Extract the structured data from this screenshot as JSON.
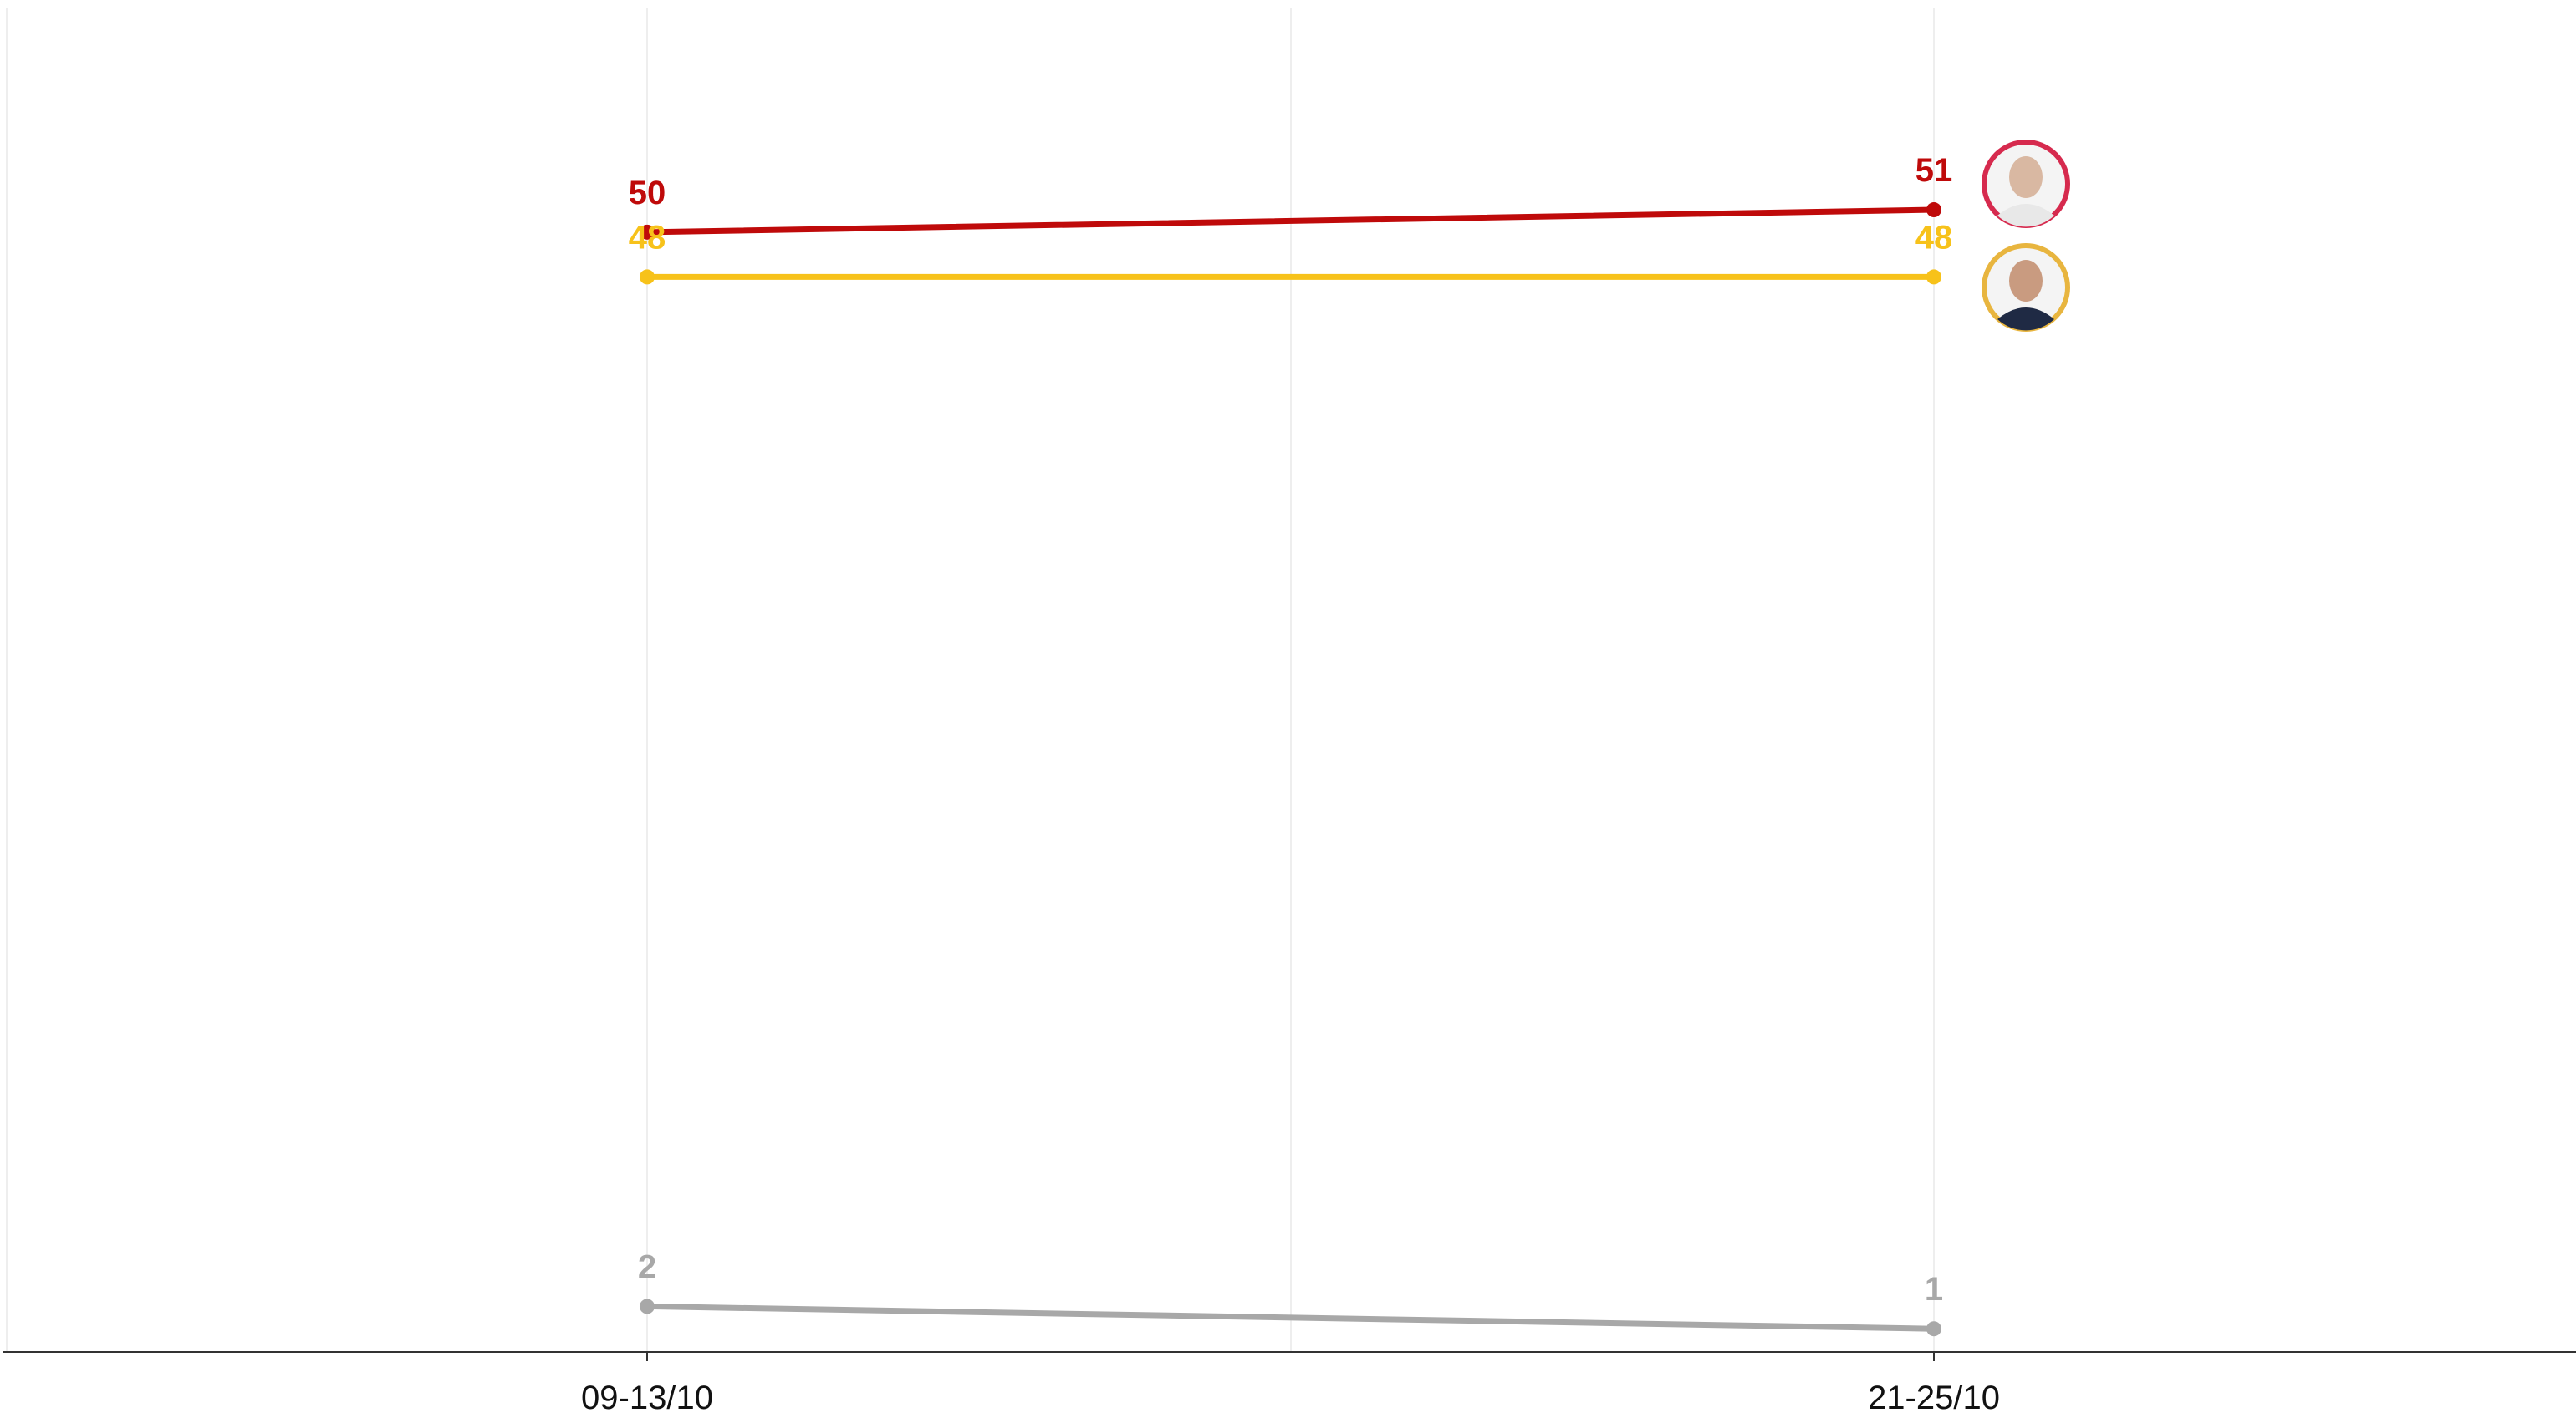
{
  "chart_data": {
    "type": "line",
    "categories": [
      "09-13/10",
      "21-25/10"
    ],
    "series": [
      {
        "color": "#bf0a0a",
        "values": [
          50,
          51
        ]
      },
      {
        "color": "#f7c21a",
        "values": [
          48,
          48
        ]
      },
      {
        "color": "#a8a8a8",
        "values": [
          2,
          1
        ]
      }
    ],
    "ylim": [
      0,
      60
    ],
    "avatar_colors": [
      "#d62a4e",
      "#e8b53f"
    ]
  }
}
